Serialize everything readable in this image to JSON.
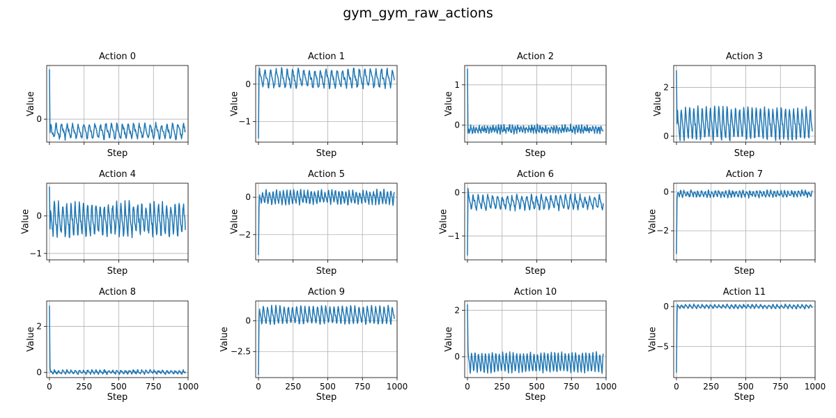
{
  "figure_title": "gym_gym_raw_actions",
  "chart_data": [
    {
      "type": "line",
      "title": "Action 0",
      "xlabel": "Step",
      "ylabel": "Value",
      "xlim": [
        -20,
        1000
      ],
      "ylim": [
        -0.76,
        1.78
      ],
      "grid": true,
      "show_x_ticklabels": false,
      "xticks": [
        0,
        250,
        500,
        750,
        1000
      ],
      "yticks": [
        0
      ],
      "color": "#1f77b4",
      "spike": [
        1.65,
        -0.45
      ],
      "base": -0.4,
      "amp": 0.2,
      "period": 40,
      "noise": 0.07
    },
    {
      "type": "line",
      "title": "Action 1",
      "xlabel": "Step",
      "ylabel": "Value",
      "xlim": [
        -20,
        1000
      ],
      "ylim": [
        -1.55,
        0.5
      ],
      "grid": true,
      "show_x_ticklabels": false,
      "xticks": [
        0,
        250,
        500,
        750,
        1000
      ],
      "yticks": [
        -1,
        0
      ],
      "color": "#1f77b4",
      "spike": [
        -1.45,
        0.25
      ],
      "base": 0.15,
      "amp": 0.2,
      "period": 40,
      "noise": 0.06
    },
    {
      "type": "line",
      "title": "Action 2",
      "xlabel": "Step",
      "ylabel": "Value",
      "xlim": [
        -20,
        1000
      ],
      "ylim": [
        -0.42,
        1.48
      ],
      "grid": true,
      "show_x_ticklabels": false,
      "xticks": [
        0,
        250,
        500,
        750,
        1000
      ],
      "yticks": [
        0,
        1
      ],
      "color": "#1f77b4",
      "spike": [
        1.4,
        -0.2
      ],
      "base": -0.1,
      "amp": 0.07,
      "period": 20,
      "noise": 0.05
    },
    {
      "type": "line",
      "title": "Action 3",
      "xlabel": "Step",
      "ylabel": "Value",
      "xlim": [
        -20,
        1000
      ],
      "ylim": [
        -0.25,
        2.9
      ],
      "grid": true,
      "show_x_ticklabels": false,
      "xticks": [
        0,
        250,
        500,
        750,
        1000
      ],
      "yticks": [
        0,
        2
      ],
      "color": "#1f77b4",
      "spike": [
        2.7,
        0.5
      ],
      "base": 0.5,
      "amp": 0.55,
      "period": 30,
      "noise": 0.1
    },
    {
      "type": "line",
      "title": "Action 4",
      "xlabel": "Step",
      "ylabel": "Value",
      "xlim": [
        -20,
        1000
      ],
      "ylim": [
        -1.17,
        0.87
      ],
      "grid": true,
      "show_x_ticklabels": false,
      "xticks": [
        0,
        250,
        500,
        750,
        1000
      ],
      "yticks": [
        -1,
        0
      ],
      "color": "#1f77b4",
      "spike": [
        0.78,
        -0.35
      ],
      "base": -0.1,
      "amp": 0.35,
      "period": 30,
      "noise": 0.1
    },
    {
      "type": "line",
      "title": "Action 5",
      "xlabel": "Step",
      "ylabel": "Value",
      "xlim": [
        -20,
        1000
      ],
      "ylim": [
        -3.35,
        0.75
      ],
      "grid": true,
      "show_x_ticklabels": false,
      "xticks": [
        0,
        250,
        500,
        750,
        1000
      ],
      "yticks": [
        -2,
        0
      ],
      "color": "#1f77b4",
      "spike": [
        -3.1,
        -0.6
      ],
      "base": 0.0,
      "amp": 0.3,
      "period": 25,
      "noise": 0.1
    },
    {
      "type": "line",
      "title": "Action 6",
      "xlabel": "Step",
      "ylabel": "Value",
      "xlim": [
        -20,
        1000
      ],
      "ylim": [
        -1.55,
        0.22
      ],
      "grid": true,
      "show_x_ticklabels": false,
      "xticks": [
        0,
        250,
        500,
        750,
        1000
      ],
      "yticks": [
        -1,
        0
      ],
      "color": "#1f77b4",
      "spike": [
        -1.45,
        0.1
      ],
      "base": -0.22,
      "amp": 0.13,
      "period": 35,
      "noise": 0.05
    },
    {
      "type": "line",
      "title": "Action 7",
      "xlabel": "Step",
      "ylabel": "Value",
      "xlim": [
        -20,
        1000
      ],
      "ylim": [
        -3.5,
        0.45
      ],
      "grid": true,
      "show_x_ticklabels": false,
      "xticks": [
        0,
        250,
        500,
        750,
        1000
      ],
      "yticks": [
        -2,
        0
      ],
      "color": "#1f77b4",
      "spike": [
        -3.2,
        -0.4
      ],
      "base": -0.1,
      "amp": 0.12,
      "period": 25,
      "noise": 0.08
    },
    {
      "type": "line",
      "title": "Action 8",
      "xlabel": "Step",
      "ylabel": "Value",
      "xlim": [
        -20,
        1000
      ],
      "ylim": [
        -0.22,
        3.1
      ],
      "grid": true,
      "show_x_ticklabels": true,
      "xticks": [
        0,
        250,
        500,
        750,
        1000
      ],
      "yticks": [
        0,
        2
      ],
      "color": "#1f77b4",
      "spike": [
        2.9,
        0.2
      ],
      "base": 0.02,
      "amp": 0.06,
      "period": 30,
      "noise": 0.04
    },
    {
      "type": "line",
      "title": "Action 9",
      "xlabel": "Step",
      "ylabel": "Value",
      "xlim": [
        -20,
        1000
      ],
      "ylim": [
        -4.6,
        1.6
      ],
      "grid": true,
      "show_x_ticklabels": true,
      "xticks": [
        0,
        250,
        500,
        750,
        1000
      ],
      "yticks": [
        -2.5,
        0.0
      ],
      "color": "#1f77b4",
      "spike": [
        -4.4,
        0.0
      ],
      "base": 0.45,
      "amp": 0.6,
      "period": 30,
      "noise": 0.1
    },
    {
      "type": "line",
      "title": "Action 10",
      "xlabel": "Step",
      "ylabel": "Value",
      "xlim": [
        -20,
        1000
      ],
      "ylim": [
        -0.9,
        2.4
      ],
      "grid": true,
      "show_x_ticklabels": true,
      "xticks": [
        0,
        250,
        500,
        750,
        1000
      ],
      "yticks": [
        0,
        2
      ],
      "color": "#1f77b4",
      "spike": [
        2.25,
        0.3
      ],
      "base": -0.25,
      "amp": 0.35,
      "period": 25,
      "noise": 0.06
    },
    {
      "type": "line",
      "title": "Action 11",
      "xlabel": "Step",
      "ylabel": "Value",
      "xlim": [
        -20,
        1000
      ],
      "ylim": [
        -8.9,
        0.7
      ],
      "grid": true,
      "show_x_ticklabels": true,
      "xticks": [
        0,
        250,
        500,
        750,
        1000
      ],
      "yticks": [
        -5,
        0
      ],
      "color": "#1f77b4",
      "spike": [
        -8.3,
        -0.8
      ],
      "base": 0.0,
      "amp": 0.2,
      "period": 30,
      "noise": 0.08
    }
  ]
}
